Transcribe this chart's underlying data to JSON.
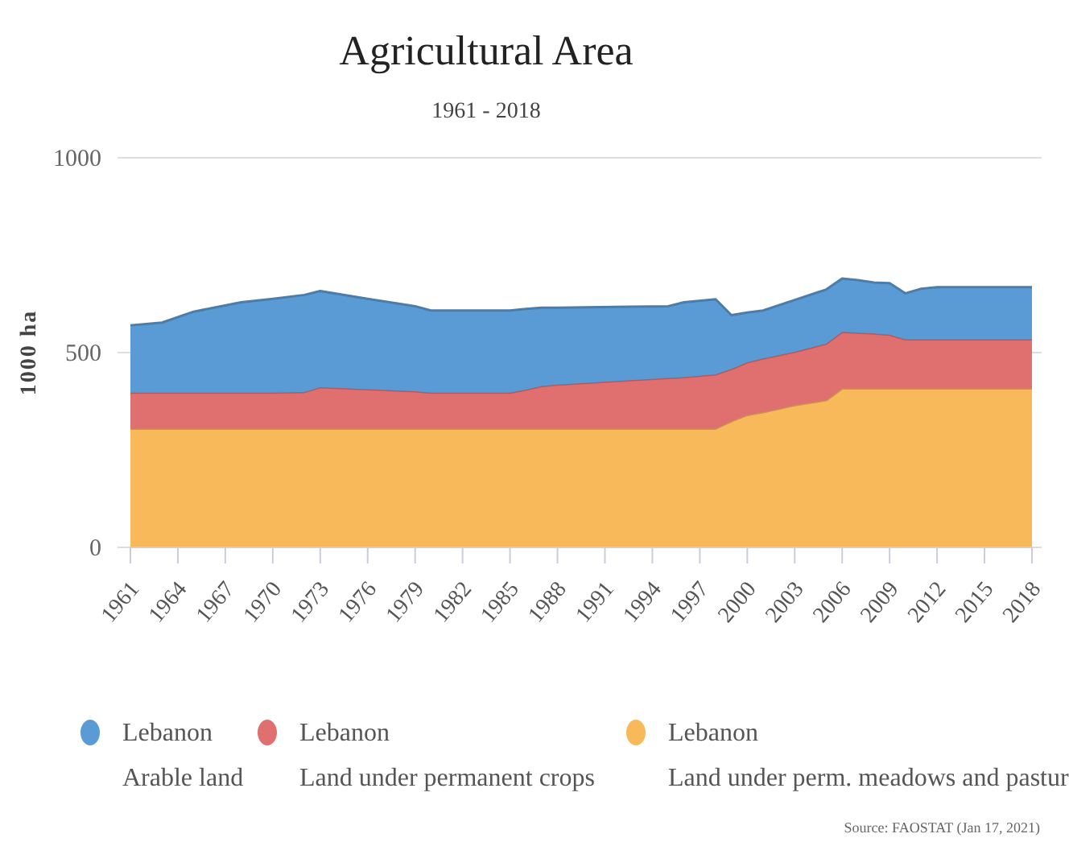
{
  "chart_data": {
    "type": "area",
    "stacked": true,
    "title": "Agricultural Area",
    "subtitle": "1961 - 2018",
    "ylabel": "1000 ha",
    "x": [
      1961,
      1963,
      1965,
      1968,
      1970,
      1972,
      1973,
      1976,
      1979,
      1980,
      1985,
      1986,
      1987,
      1988,
      1995,
      1996,
      1998,
      1999,
      2000,
      2001,
      2003,
      2005,
      2006,
      2007,
      2008,
      2009,
      2010,
      2011,
      2012,
      2018
    ],
    "series": [
      {
        "name": "Lebanon\nLand under perm. meadows and pastur",
        "color": "#f8b95a",
        "values": [
          305,
          305,
          305,
          305,
          305,
          305,
          305,
          305,
          305,
          305,
          305,
          305,
          305,
          305,
          305,
          305,
          305,
          324,
          340,
          347,
          365,
          378,
          408,
          408,
          408,
          408,
          408,
          408,
          408,
          408
        ]
      },
      {
        "name": "Lebanon\nLand under permanent crops",
        "color": "#e0706f",
        "values": [
          92,
          92,
          92,
          92,
          92,
          94,
          106,
          101,
          96,
          92,
          92,
          100,
          109,
          113,
          130,
          132,
          139,
          134,
          135,
          138,
          137,
          145,
          145,
          143,
          141,
          138,
          126,
          126,
          126,
          126
        ]
      },
      {
        "name": "Lebanon\nArable land",
        "color": "#5b9bd5",
        "values": [
          173,
          180,
          208,
          232,
          241,
          249,
          247,
          232,
          218,
          211,
          211,
          207,
          201,
          197,
          184,
          192,
          193,
          138,
          128,
          123,
          133,
          139,
          137,
          135,
          131,
          132,
          118,
          130,
          134,
          134
        ]
      }
    ],
    "xlim": [
      1961,
      2018
    ],
    "xticks": [
      1961,
      1964,
      1967,
      1970,
      1973,
      1976,
      1979,
      1982,
      1985,
      1988,
      1991,
      1994,
      1997,
      2000,
      2003,
      2006,
      2009,
      2012,
      2015,
      2018
    ],
    "ylim": [
      0,
      1000
    ],
    "yticks": [
      0,
      500,
      1000
    ],
    "grid": "y",
    "legend": "bottom",
    "annotations": [
      "Source: FAOSTAT (Jan 17, 2021)"
    ]
  }
}
